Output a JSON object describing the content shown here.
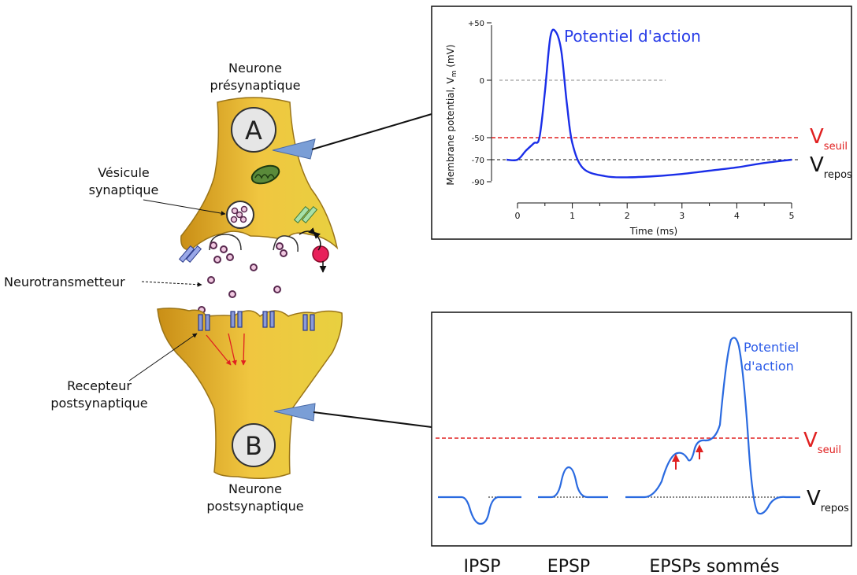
{
  "labels": {
    "neuron_a_line1": "Neurone",
    "neuron_a_line2": "présynaptique",
    "neuron_a_letter": "A",
    "vesicle_line1": "Vésicule",
    "vesicle_line2": "synaptique",
    "neurotransmitter": "Neurotransmetteur",
    "receptor_line1": "Recepteur",
    "receptor_line2": "postsynaptique",
    "neuron_b_letter": "B",
    "neuron_b_line1": "Neurone",
    "neuron_b_line2": "postsynaptique"
  },
  "top_chart": {
    "title": "Potentiel d'action",
    "ylabel": "Membrane potential, V",
    "ylabel_sub": "m",
    "ylabel_unit": " (mV)",
    "xlabel": "Time (ms)",
    "y_ticks": [
      "+50",
      "0",
      "-50",
      "-70",
      "-90"
    ],
    "x_ticks": [
      "0",
      "1",
      "2",
      "3",
      "4",
      "5"
    ],
    "threshold_label": "V",
    "threshold_sub": "seuil",
    "rest_label": "V",
    "rest_sub": "repos"
  },
  "bottom_chart": {
    "title_line1": "Potentiel",
    "title_line2": "d'action",
    "threshold_label": "V",
    "threshold_sub": "seuil",
    "rest_label": "V",
    "rest_sub": "repos",
    "categories": [
      "IPSP",
      "EPSP",
      "EPSPs sommés"
    ]
  },
  "colors": {
    "trace": "#1a2ee8",
    "trace_bottom": "#2a6ae0",
    "threshold": "#e02020",
    "neuron_fill": "#e8b830",
    "neuron_edge": "#8a6a10",
    "arrow_red": "#e02020"
  },
  "chart_data": [
    {
      "type": "line",
      "title": "Potentiel d'action",
      "xlabel": "Time (ms)",
      "ylabel": "Membrane potential, Vm (mV)",
      "xlim": [
        0,
        5
      ],
      "ylim": [
        -90,
        50
      ],
      "x": [
        -0.2,
        0.0,
        0.15,
        0.3,
        0.4,
        0.5,
        0.6,
        0.7,
        0.8,
        0.9,
        1.0,
        1.2,
        1.6,
        2.0,
        2.5,
        3.0,
        3.5,
        4.0,
        4.5,
        5.0
      ],
      "series": [
        {
          "values": [
            -70,
            -70,
            -62,
            -55,
            -50,
            -10,
            38,
            42,
            25,
            -20,
            -55,
            -78,
            -85,
            -86,
            -85,
            -83,
            -80,
            -77,
            -73,
            -70
          ]
        }
      ],
      "reference_lines": {
        "threshold_mV": -50,
        "rest_mV": -70,
        "zero_mV": 0
      }
    }
  ]
}
